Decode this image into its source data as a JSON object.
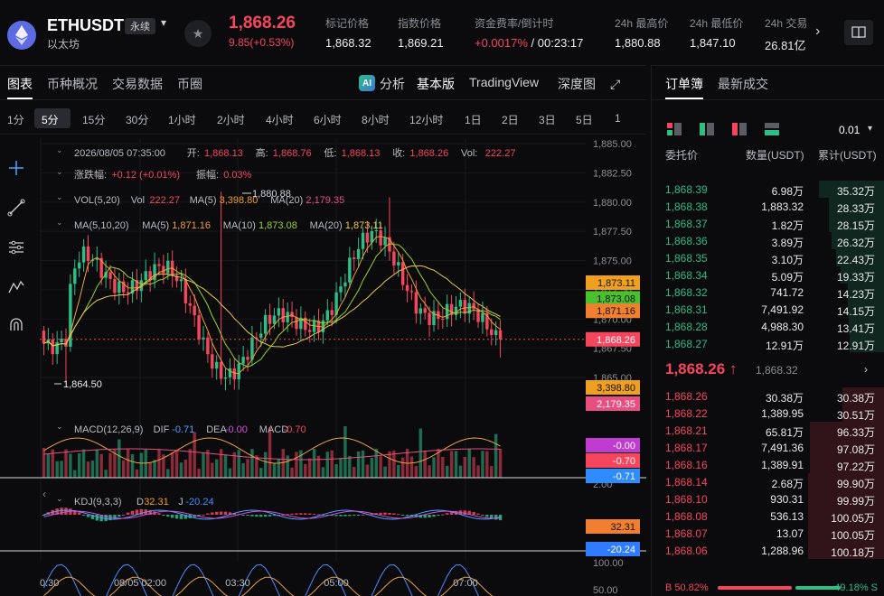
{
  "header": {
    "symbol": "ETHUSDT",
    "perp_tag": "永续",
    "subtitle": "以太坊",
    "last_price": "1,868.26",
    "change": "9.85(+0.53%)",
    "stats": [
      {
        "label": "标记价格",
        "value": "1,868.32"
      },
      {
        "label": "指数价格",
        "value": "1,869.21"
      },
      {
        "label": "资金费率/倒计时",
        "value_rate": "+0.0017%",
        "value_timer": "/ 00:23:17"
      },
      {
        "label": "24h 最高价",
        "value": "1,880.88"
      },
      {
        "label": "24h 最低价",
        "value": "1,847.10"
      },
      {
        "label": "24h 交易",
        "value": "26.81亿"
      }
    ]
  },
  "chart_tabs": {
    "items": [
      "图表",
      "币种概况",
      "交易数据",
      "币圈"
    ],
    "active": "图表",
    "tools": {
      "analysis": "分析",
      "basic": "基本版",
      "tradingview": "TradingView",
      "depth": "深度图"
    }
  },
  "intervals": {
    "items": [
      "1分",
      "5分",
      "15分",
      "30分",
      "1小时",
      "2小时",
      "4小时",
      "6小时",
      "8小时",
      "12小时",
      "1日",
      "2日",
      "3日",
      "5日",
      "1"
    ],
    "active": "5分"
  },
  "chart": {
    "ohlc_line": {
      "datetime": "2026/08/05 07:35:00",
      "open_label": "开:",
      "open": "1,868.13",
      "high_label": "高:",
      "high": "1,868.76",
      "low_label": "低:",
      "low": "1,868.13",
      "close_label": "收:",
      "close": "1,868.26",
      "vol_label": "Vol:",
      "vol": "222.27"
    },
    "change_line": {
      "label": "涨跌幅:",
      "value": "+0.12 (+0.01%)",
      "amp_label": "振幅:",
      "amp": "0.03%"
    },
    "vol_line": {
      "name": "VOL(5,20)",
      "vol_label": "Vol",
      "vol": "222.27",
      "ma5_label": "MA(5)",
      "ma5": "3,398.80",
      "ma20_label": "MA(20)",
      "ma20": "2,179.35"
    },
    "ma_line": {
      "name": "MA(5,10,20)",
      "ma5_label": "MA(5)",
      "ma5": "1,871.16",
      "ma10_label": "MA(10)",
      "ma10": "1,873.08",
      "ma20_label": "MA(20)",
      "ma20": "1,873.11"
    },
    "macd_line": {
      "name": "MACD(12,26,9)",
      "dif_label": "DIF",
      "dif": "-0.71",
      "dea_label": "DEA",
      "dea": "-0.00",
      "macd_label": "MACD",
      "macd": "-0.70"
    },
    "kdj_line": {
      "name": "KDJ(9,3,3)",
      "d_label": "D",
      "d": "32.31",
      "j_label": "J",
      "j": "-20.24"
    },
    "price_axis": [
      "1,885.00",
      "1,882.50",
      "1,880.00",
      "1,877.50",
      "1,875.00",
      "1,872.50",
      "1,870.00",
      "1,867.50",
      "1,865.00"
    ],
    "macd_axis": [
      "2.00"
    ],
    "kdj_axis": [
      "100.00",
      "50.00"
    ],
    "time_axis": [
      "0:30",
      "08/05 02:00",
      "03:30",
      "05:00",
      "07:00"
    ],
    "high_annotation": "1,880.88",
    "low_annotation": "1,864.50",
    "labels": {
      "ma20": "1,873.11",
      "ma10": "1,873.08",
      "ma5": "1,871.16",
      "last": "1,868.26",
      "vol_ma5": "3,398.80",
      "vol_ma20": "2,179.35",
      "macd_dea": "-0.00",
      "macd_hist": "-0.70",
      "macd_dif": "-0.71",
      "kdj_d": "32.31",
      "kdj_j": "-20.24"
    },
    "colors": {
      "up": "#2ebd85",
      "down": "#f6465d",
      "ma5": "#f0a030",
      "ma10": "#9bd32b",
      "ma20": "#e8c84a",
      "dif": "#4aa3ff",
      "dea": "#d54de0"
    }
  },
  "orderbook": {
    "tabs": [
      "订单簿",
      "最新成交"
    ],
    "active": "订单簿",
    "precision": "0.01",
    "col_price": "委托价",
    "col_qty": "数量(USDT)",
    "col_total": "累计(USDT)",
    "bids": [
      {
        "price": "1,868.39",
        "qty": "6.98万",
        "total": "35.32万"
      },
      {
        "price": "1,868.38",
        "qty": "1,883.32",
        "total": "28.33万"
      },
      {
        "price": "1,868.37",
        "qty": "1.82万",
        "total": "28.15万"
      },
      {
        "price": "1,868.36",
        "qty": "3.89万",
        "total": "26.32万"
      },
      {
        "price": "1,868.35",
        "qty": "3.10万",
        "total": "22.43万"
      },
      {
        "price": "1,868.34",
        "qty": "5.09万",
        "total": "19.33万"
      },
      {
        "price": "1,868.32",
        "qty": "741.72",
        "total": "14.23万"
      },
      {
        "price": "1,868.31",
        "qty": "7,491.92",
        "total": "14.15万"
      },
      {
        "price": "1,868.28",
        "qty": "4,988.30",
        "total": "13.41万"
      },
      {
        "price": "1,868.27",
        "qty": "12.91万",
        "total": "12.91万"
      }
    ],
    "mid_price": "1,868.26",
    "mid_arrow": "↑",
    "mid_sub": "1,868.32",
    "asks": [
      {
        "price": "1,868.26",
        "qty": "30.38万",
        "total": "30.38万"
      },
      {
        "price": "1,868.22",
        "qty": "1,389.95",
        "total": "30.51万"
      },
      {
        "price": "1,868.21",
        "qty": "65.81万",
        "total": "96.33万"
      },
      {
        "price": "1,868.17",
        "qty": "7,491.36",
        "total": "97.08万"
      },
      {
        "price": "1,868.16",
        "qty": "1,389.91",
        "total": "97.22万"
      },
      {
        "price": "1,868.14",
        "qty": "2.68万",
        "total": "99.90万"
      },
      {
        "price": "1,868.10",
        "qty": "930.31",
        "total": "99.99万"
      },
      {
        "price": "1,868.08",
        "qty": "536.13",
        "total": "100.05万"
      },
      {
        "price": "1,868.07",
        "qty": "13.07",
        "total": "100.05万"
      },
      {
        "price": "1,868.06",
        "qty": "1,288.96",
        "total": "100.18万"
      }
    ],
    "ratio": {
      "buy": "B 50.82%",
      "sell": "49.18% S"
    }
  }
}
